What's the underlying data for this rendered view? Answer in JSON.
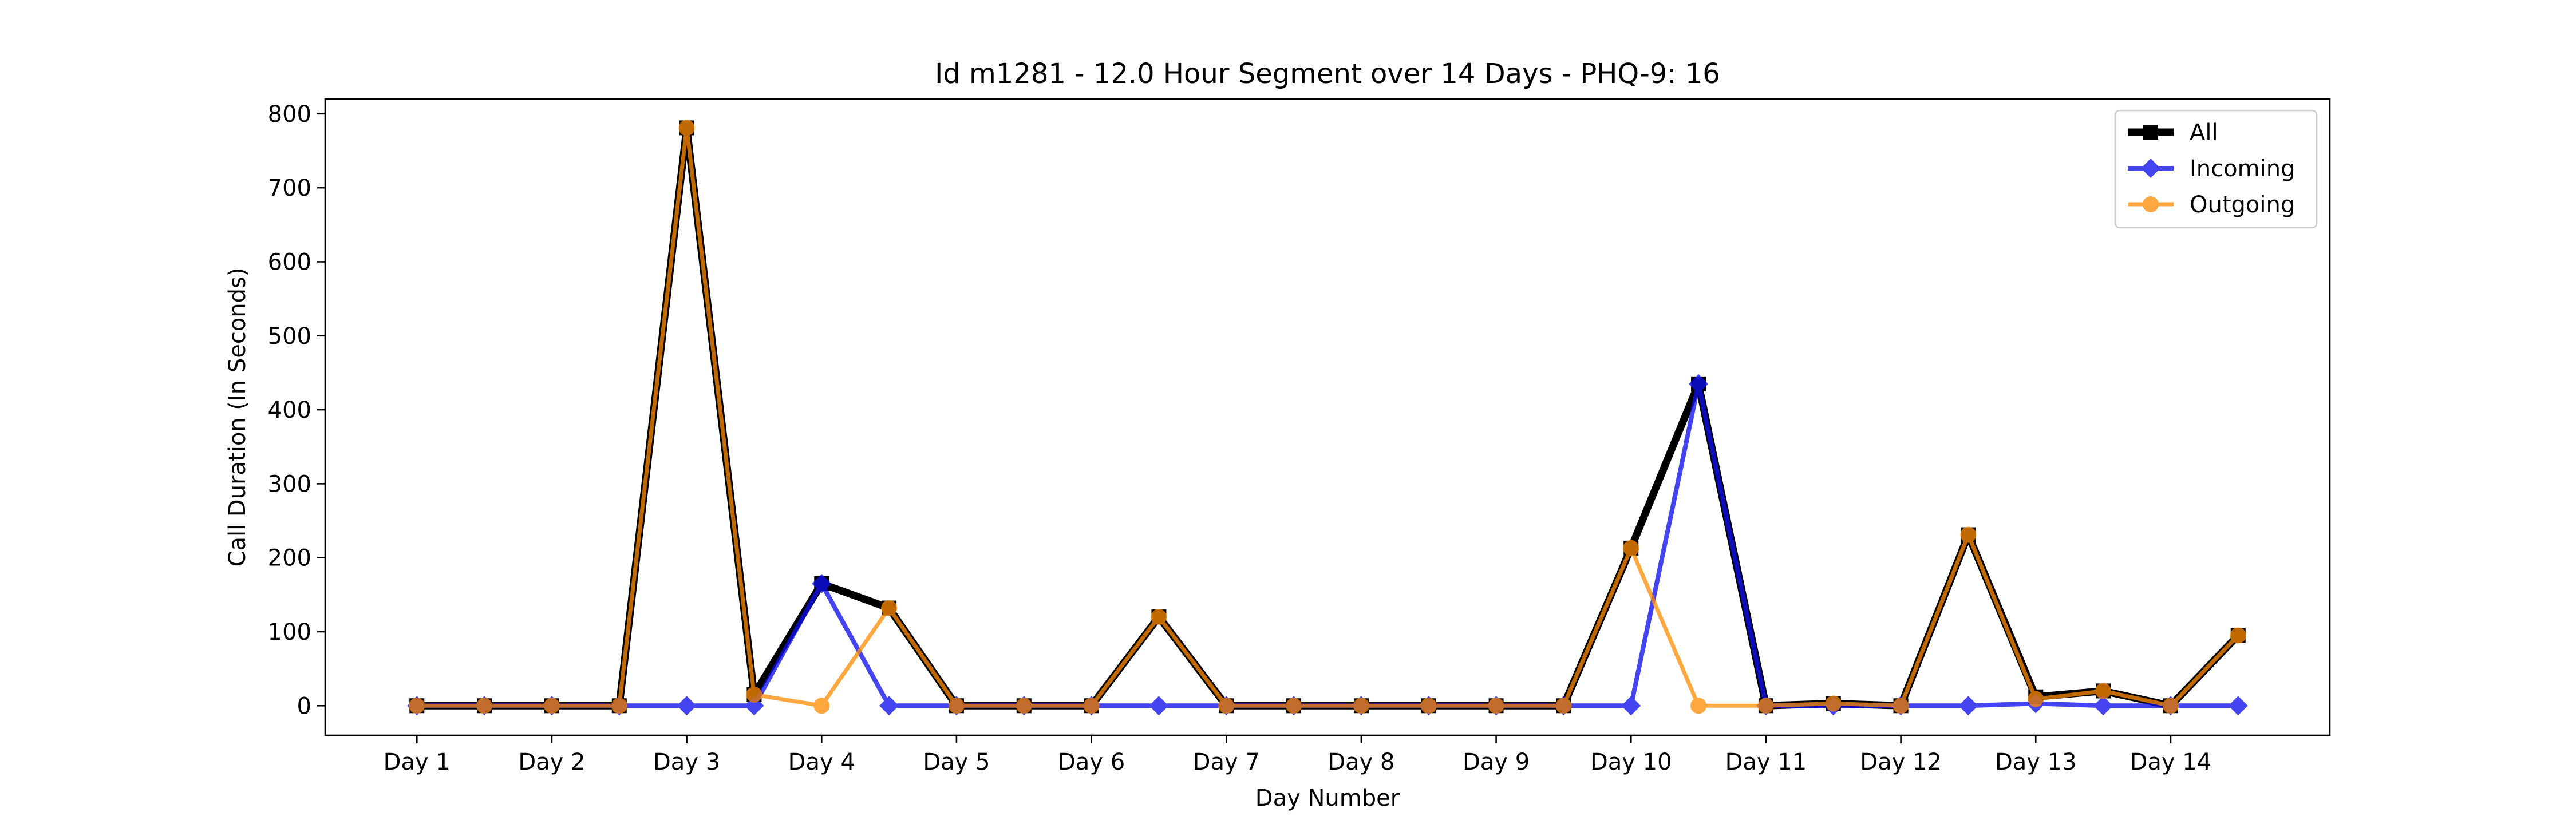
{
  "chart_data": {
    "type": "line",
    "title": "Id m1281 - 12.0 Hour Segment over 14 Days - PHQ-9: 16",
    "xlabel": "Day Number",
    "ylabel": "Call Duration (In Seconds)",
    "x_ticks": [
      "Day 1",
      "Day 2",
      "Day 3",
      "Day 4",
      "Day 5",
      "Day 6",
      "Day 7",
      "Day 8",
      "Day 9",
      "Day 10",
      "Day 11",
      "Day 12",
      "Day 13",
      "Day 14"
    ],
    "y_ticks": [
      0,
      100,
      200,
      300,
      400,
      500,
      600,
      700,
      800
    ],
    "ylim": [
      -40,
      820
    ],
    "x": [
      1,
      1.5,
      2,
      2.5,
      3,
      3.5,
      4,
      4.5,
      5,
      5.5,
      6,
      6.5,
      7,
      7.5,
      8,
      8.5,
      9,
      9.5,
      10,
      10.5,
      11,
      11.5,
      12,
      12.5,
      13,
      13.5,
      14,
      14.5
    ],
    "xlim": [
      0.32,
      15.18
    ],
    "grid": false,
    "legend_position": "top-right",
    "series": [
      {
        "name": "All",
        "color": "#000000",
        "marker": "square",
        "values": [
          0,
          0,
          0,
          0,
          781,
          15,
          165,
          132,
          0,
          0,
          0,
          120,
          0,
          0,
          0,
          0,
          0,
          0,
          213,
          435,
          0,
          3,
          0,
          231,
          12,
          20,
          0,
          95
        ]
      },
      {
        "name": "Incoming",
        "color": "#1010ee",
        "marker": "diamond",
        "values": [
          0,
          0,
          0,
          0,
          0,
          0,
          165,
          0,
          0,
          0,
          0,
          0,
          0,
          0,
          0,
          0,
          0,
          0,
          0,
          435,
          0,
          0,
          0,
          0,
          3,
          0,
          0,
          0
        ]
      },
      {
        "name": "Outgoing",
        "color": "#ff8c00",
        "marker": "circle",
        "values": [
          0,
          0,
          0,
          0,
          781,
          15,
          0,
          132,
          0,
          0,
          0,
          120,
          0,
          0,
          0,
          0,
          0,
          0,
          213,
          0,
          0,
          3,
          0,
          231,
          9,
          20,
          0,
          95
        ]
      }
    ]
  }
}
